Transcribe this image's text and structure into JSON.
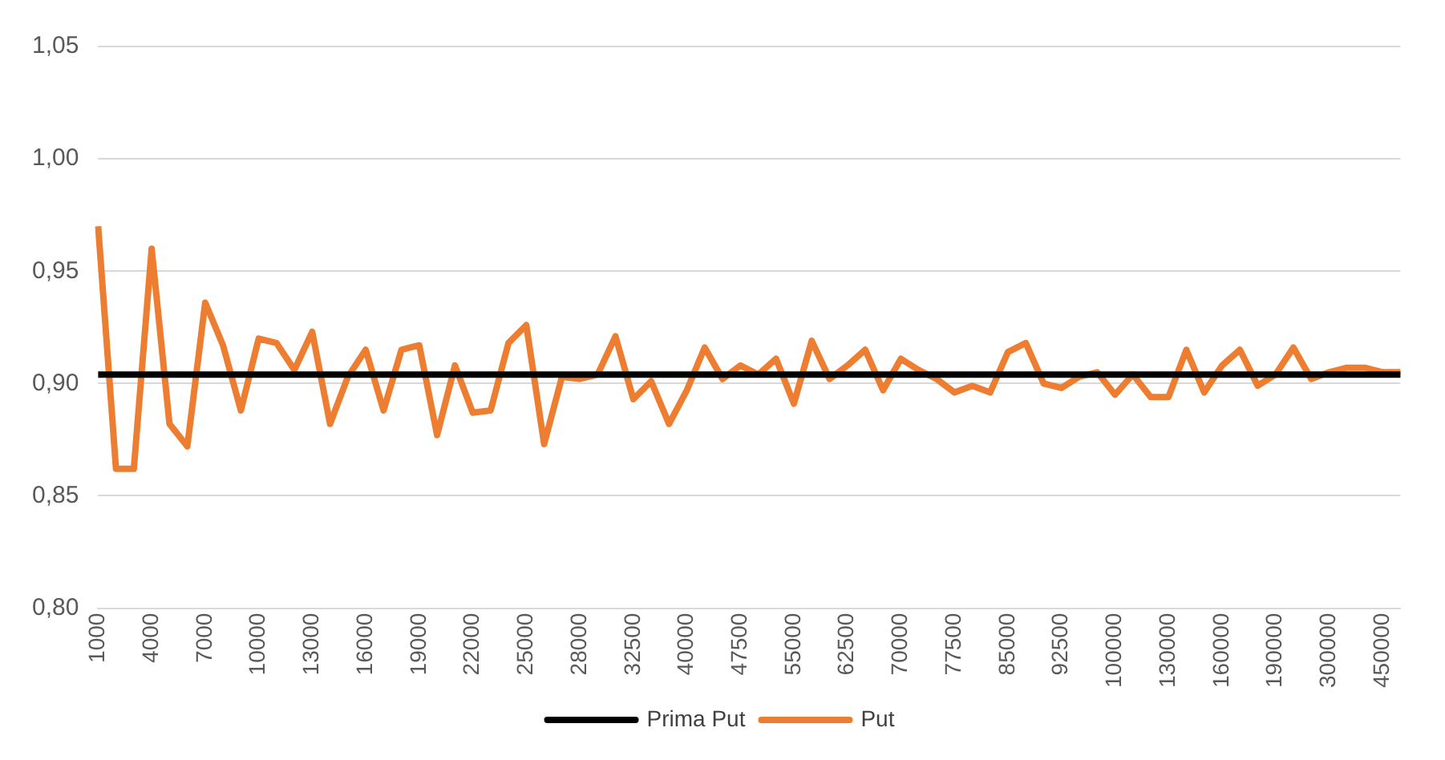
{
  "chart_data": {
    "type": "line",
    "categories": [
      "1000",
      null,
      null,
      "4000",
      null,
      null,
      "7000",
      null,
      null,
      "10000",
      null,
      null,
      "13000",
      null,
      null,
      "16000",
      null,
      null,
      "19000",
      null,
      null,
      "22000",
      null,
      null,
      "25000",
      null,
      null,
      "28000",
      null,
      null,
      "32500",
      null,
      null,
      "40000",
      null,
      null,
      "47500",
      null,
      null,
      "55000",
      null,
      null,
      "62500",
      null,
      null,
      "70000",
      null,
      null,
      "77500",
      null,
      null,
      "85000",
      null,
      null,
      "92500",
      null,
      null,
      "100000",
      null,
      null,
      "130000",
      null,
      null,
      "160000",
      null,
      null,
      "190000",
      null,
      null,
      "300000",
      null,
      null,
      "450000",
      null
    ],
    "series": [
      {
        "name": "Prima Put",
        "color": "#000000",
        "values": [
          0.904,
          0.904,
          0.904,
          0.904,
          0.904,
          0.904,
          0.904,
          0.904,
          0.904,
          0.904,
          0.904,
          0.904,
          0.904,
          0.904,
          0.904,
          0.904,
          0.904,
          0.904,
          0.904,
          0.904,
          0.904,
          0.904,
          0.904,
          0.904,
          0.904,
          0.904,
          0.904,
          0.904,
          0.904,
          0.904,
          0.904,
          0.904,
          0.904,
          0.904,
          0.904,
          0.904,
          0.904,
          0.904,
          0.904,
          0.904,
          0.904,
          0.904,
          0.904,
          0.904,
          0.904,
          0.904,
          0.904,
          0.904,
          0.904,
          0.904,
          0.904,
          0.904,
          0.904,
          0.904,
          0.904,
          0.904,
          0.904,
          0.904,
          0.904,
          0.904,
          0.904,
          0.904,
          0.904,
          0.904,
          0.904,
          0.904,
          0.904,
          0.904,
          0.904,
          0.904,
          0.904,
          0.904,
          0.904,
          0.904
        ]
      },
      {
        "name": "Put",
        "color": "#ed7d31",
        "values": [
          0.97,
          0.862,
          0.862,
          0.96,
          0.882,
          0.872,
          0.936,
          0.917,
          0.888,
          0.92,
          0.918,
          0.906,
          0.923,
          0.882,
          0.903,
          0.915,
          0.888,
          0.915,
          0.917,
          0.877,
          0.908,
          0.887,
          0.888,
          0.918,
          0.926,
          0.873,
          0.903,
          0.902,
          0.904,
          0.921,
          0.893,
          0.901,
          0.882,
          0.897,
          0.916,
          0.902,
          0.908,
          0.904,
          0.911,
          0.891,
          0.919,
          0.902,
          0.908,
          0.915,
          0.897,
          0.911,
          0.906,
          0.902,
          0.896,
          0.899,
          0.896,
          0.914,
          0.918,
          0.9,
          0.898,
          0.903,
          0.905,
          0.895,
          0.904,
          0.894,
          0.894,
          0.915,
          0.896,
          0.908,
          0.915,
          0.899,
          0.904,
          0.916,
          0.902,
          0.905,
          0.907,
          0.907,
          0.905,
          0.905
        ]
      }
    ],
    "ylim": [
      0.8,
      1.05
    ],
    "yticks": [
      {
        "value": 0.8,
        "label": "0,80"
      },
      {
        "value": 0.85,
        "label": "0,85"
      },
      {
        "value": 0.9,
        "label": "0,90"
      },
      {
        "value": 0.95,
        "label": "0,95"
      },
      {
        "value": 1.0,
        "label": "1,00"
      },
      {
        "value": 1.05,
        "label": "1,05"
      }
    ],
    "grid": "y",
    "legend": "bottom",
    "marker": "none",
    "line_style": "solid"
  }
}
